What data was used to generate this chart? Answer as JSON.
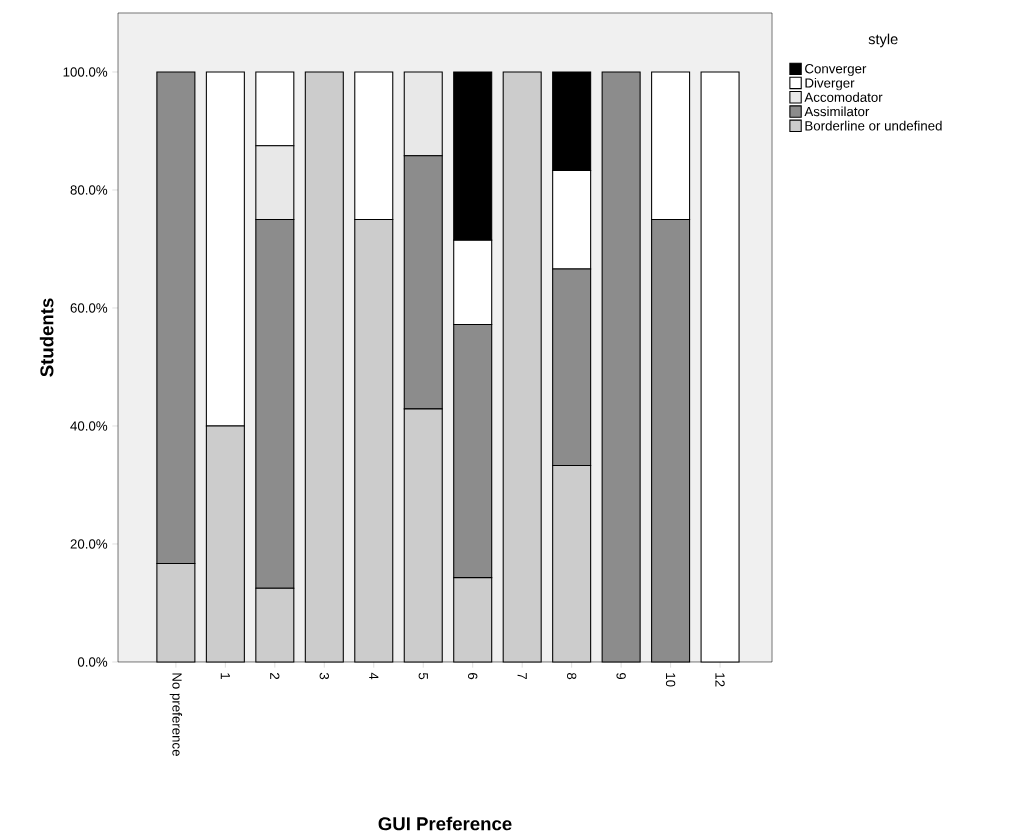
{
  "chart_data": {
    "type": "bar",
    "stacked": true,
    "xlabel": "GUI Preference",
    "ylabel": "Students",
    "legend_title": "style",
    "legend": "top right",
    "categories": [
      "No preference",
      "1",
      "2",
      "3",
      "4",
      "5",
      "6",
      "7",
      "8",
      "9",
      "10",
      "12"
    ],
    "ylim": [
      0,
      110
    ],
    "yticks": [
      {
        "value": 0,
        "label": "0.0%"
      },
      {
        "value": 20,
        "label": "20.0%"
      },
      {
        "value": 40,
        "label": "40.0%"
      },
      {
        "value": 60,
        "label": "60.0%"
      },
      {
        "value": 80,
        "label": "80.0%"
      },
      {
        "value": 100,
        "label": "100.0%"
      }
    ],
    "series": [
      {
        "name": "Borderline or undefined",
        "color": "#cccccc",
        "values": [
          16.7,
          40,
          12.5,
          100,
          75,
          42.9,
          14.3,
          100,
          33.3,
          0,
          0,
          0
        ]
      },
      {
        "name": "Assimilator",
        "color": "#8c8c8c",
        "values": [
          83.3,
          0,
          62.5,
          0,
          0,
          42.9,
          42.9,
          0,
          33.3,
          100,
          75,
          0
        ]
      },
      {
        "name": "Accomodator",
        "color": "#e8e8e8",
        "values": [
          0,
          0,
          12.5,
          0,
          0,
          14.2,
          0,
          0,
          0,
          0,
          0,
          0
        ]
      },
      {
        "name": "Diverger",
        "color": "#ffffff",
        "values": [
          0,
          60,
          12.5,
          0,
          25,
          0,
          14.3,
          0,
          16.7,
          0,
          25,
          100
        ]
      },
      {
        "name": "Converger",
        "color": "#000000",
        "values": [
          0,
          0,
          0,
          0,
          0,
          0,
          28.5,
          0,
          16.7,
          0,
          0,
          0
        ]
      }
    ]
  }
}
